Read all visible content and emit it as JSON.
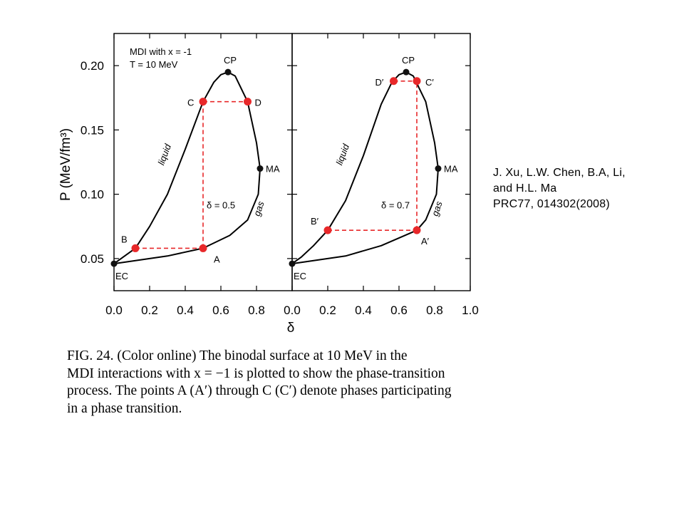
{
  "citation": {
    "line1": "J. Xu, L.W. Chen, B.A, Li,",
    "line2": "and H.L. Ma",
    "line3": "PRC77, 014302(2008)"
  },
  "caption": {
    "line1": "FIG. 24. (Color online) The binodal surface at 10 MeV in the",
    "line2": "MDI interactions with x = −1 is plotted to show the phase-transition",
    "line3": "process. The points A (A′) through C (C′) denote phases participating",
    "line4": "in a phase transition."
  },
  "colors": {
    "curve": "#000000",
    "points": "#e8282a",
    "dash": "#e8282a"
  },
  "chart_data": [
    {
      "type": "line",
      "panel": "left",
      "title": "",
      "annotation": [
        "MDI with x = -1",
        "T = 10 MeV"
      ],
      "xlabel": "δ",
      "ylabel": "P (MeV/fm³)",
      "xlim": [
        0.0,
        1.0
      ],
      "ylim": [
        0.025,
        0.225
      ],
      "x_ticks": [
        "0.0",
        "0.2",
        "0.4",
        "0.6",
        "0.8"
      ],
      "y_ticks": [
        "0.05",
        "0.10",
        "0.15",
        "0.20"
      ],
      "y_tick_values": [
        0.05,
        0.1,
        0.15,
        0.2
      ],
      "curve_labels": [
        {
          "text": "liquid",
          "x": 0.3,
          "y": 0.13
        },
        {
          "text": "gas",
          "x": 0.83,
          "y": 0.088
        }
      ],
      "boundary": [
        [
          0.0,
          0.046
        ],
        [
          0.05,
          0.051
        ],
        [
          0.12,
          0.058
        ],
        [
          0.2,
          0.075
        ],
        [
          0.3,
          0.1
        ],
        [
          0.4,
          0.135
        ],
        [
          0.5,
          0.172
        ],
        [
          0.56,
          0.187
        ],
        [
          0.6,
          0.193
        ],
        [
          0.64,
          0.195
        ],
        [
          0.68,
          0.192
        ],
        [
          0.75,
          0.172
        ],
        [
          0.8,
          0.14
        ],
        [
          0.82,
          0.12
        ],
        [
          0.81,
          0.1
        ],
        [
          0.75,
          0.08
        ],
        [
          0.65,
          0.068
        ],
        [
          0.5,
          0.058
        ],
        [
          0.3,
          0.052
        ],
        [
          0.1,
          0.048
        ],
        [
          0.0,
          0.046
        ]
      ],
      "points": [
        {
          "label": "A",
          "x": 0.5,
          "y": 0.058,
          "color": "red"
        },
        {
          "label": "B",
          "x": 0.12,
          "y": 0.058,
          "color": "red"
        },
        {
          "label": "C",
          "x": 0.5,
          "y": 0.172,
          "color": "red"
        },
        {
          "label": "D",
          "x": 0.75,
          "y": 0.172,
          "color": "red"
        },
        {
          "label": "CP",
          "x": 0.64,
          "y": 0.195,
          "color": "black"
        },
        {
          "label": "MA",
          "x": 0.82,
          "y": 0.12,
          "color": "black"
        },
        {
          "label": "EC",
          "x": 0.0,
          "y": 0.046,
          "color": "black"
        }
      ],
      "dashed": [
        [
          [
            0.12,
            0.058
          ],
          [
            0.5,
            0.058
          ]
        ],
        [
          [
            0.5,
            0.058
          ],
          [
            0.5,
            0.172
          ]
        ],
        [
          [
            0.5,
            0.172
          ],
          [
            0.75,
            0.172
          ]
        ]
      ],
      "delta_label": "δ = 0.5"
    },
    {
      "type": "line",
      "panel": "right",
      "title": "",
      "xlabel": "δ",
      "ylabel": "",
      "xlim": [
        0.0,
        1.0
      ],
      "ylim": [
        0.025,
        0.225
      ],
      "x_ticks": [
        "0.0",
        "0.2",
        "0.4",
        "0.6",
        "0.8",
        "1.0"
      ],
      "curve_labels": [
        {
          "text": "liquid",
          "x": 0.3,
          "y": 0.13
        },
        {
          "text": "gas",
          "x": 0.83,
          "y": 0.088
        }
      ],
      "boundary": [
        [
          0.0,
          0.046
        ],
        [
          0.05,
          0.051
        ],
        [
          0.12,
          0.06
        ],
        [
          0.2,
          0.072
        ],
        [
          0.3,
          0.095
        ],
        [
          0.4,
          0.13
        ],
        [
          0.5,
          0.17
        ],
        [
          0.56,
          0.187
        ],
        [
          0.6,
          0.193
        ],
        [
          0.64,
          0.195
        ],
        [
          0.68,
          0.192
        ],
        [
          0.75,
          0.172
        ],
        [
          0.8,
          0.14
        ],
        [
          0.82,
          0.12
        ],
        [
          0.81,
          0.1
        ],
        [
          0.75,
          0.08
        ],
        [
          0.7,
          0.072
        ],
        [
          0.5,
          0.06
        ],
        [
          0.3,
          0.052
        ],
        [
          0.1,
          0.048
        ],
        [
          0.0,
          0.046
        ]
      ],
      "points": [
        {
          "label": "A′",
          "x": 0.7,
          "y": 0.072,
          "color": "red"
        },
        {
          "label": "B′",
          "x": 0.2,
          "y": 0.072,
          "color": "red"
        },
        {
          "label": "C′",
          "x": 0.7,
          "y": 0.188,
          "color": "red"
        },
        {
          "label": "D′",
          "x": 0.57,
          "y": 0.188,
          "color": "red"
        },
        {
          "label": "CP",
          "x": 0.64,
          "y": 0.195,
          "color": "black"
        },
        {
          "label": "MA",
          "x": 0.82,
          "y": 0.12,
          "color": "black"
        },
        {
          "label": "EC",
          "x": 0.0,
          "y": 0.046,
          "color": "black"
        }
      ],
      "dashed": [
        [
          [
            0.2,
            0.072
          ],
          [
            0.7,
            0.072
          ]
        ],
        [
          [
            0.7,
            0.072
          ],
          [
            0.7,
            0.188
          ]
        ],
        [
          [
            0.57,
            0.188
          ],
          [
            0.7,
            0.188
          ]
        ]
      ],
      "delta_label": "δ = 0.7"
    }
  ]
}
